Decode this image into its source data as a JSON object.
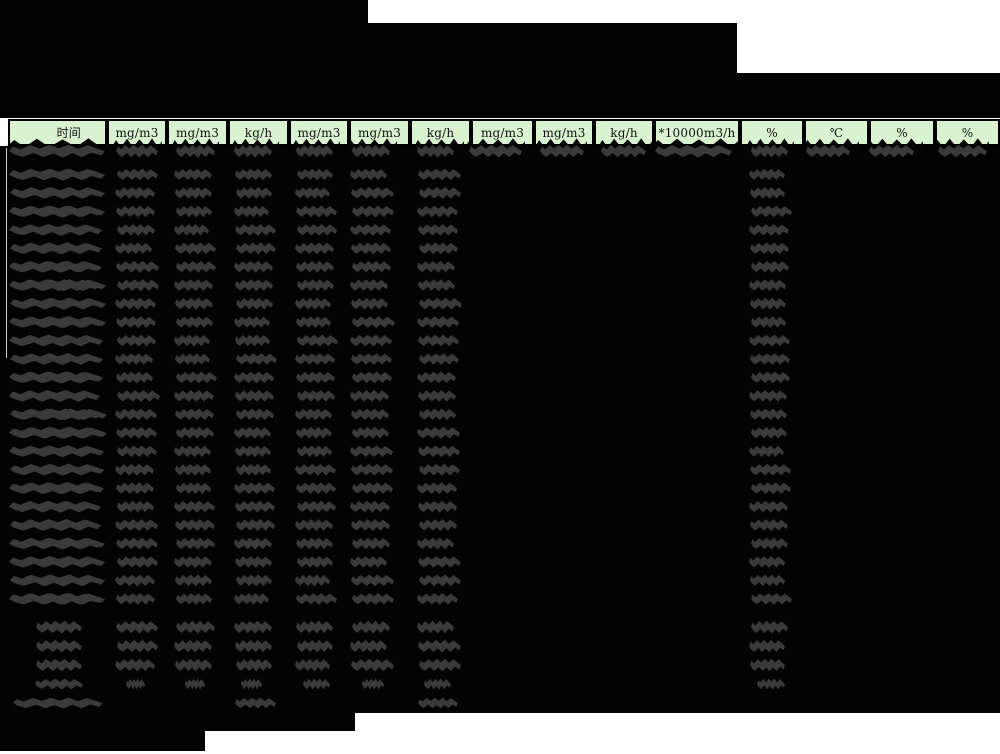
{
  "report": {
    "kind": "redacted-monitoring-report-table",
    "title_visible_text": "",
    "note": "all title lines and cell values are blacked-out redactions; only the unit header row is legible"
  },
  "colors": {
    "page_bg": "#ffffff",
    "header_bg": "#d9f3d1",
    "header_text": "#111111",
    "redaction_black": "#030303",
    "value_blob_gray": "#3a3a3a"
  },
  "table": {
    "columns": [
      {
        "key": "time",
        "label": "时间"
      },
      {
        "key": "col-2",
        "label": "mg/m3"
      },
      {
        "key": "col-3",
        "label": "mg/m3"
      },
      {
        "key": "col-4",
        "label": "kg/h"
      },
      {
        "key": "col-5",
        "label": "mg/m3"
      },
      {
        "key": "col-6",
        "label": "mg/m3"
      },
      {
        "key": "col-7",
        "label": "kg/h"
      },
      {
        "key": "col-8",
        "label": "mg/m3"
      },
      {
        "key": "col-9",
        "label": "mg/m3"
      },
      {
        "key": "col-10",
        "label": "kg/h"
      },
      {
        "key": "col-11",
        "label": "*10000m3/h"
      },
      {
        "key": "col-12",
        "label": "%"
      },
      {
        "key": "col-13",
        "label": "℃"
      },
      {
        "key": "col-14",
        "label": "%"
      },
      {
        "key": "col-15",
        "label": "%"
      }
    ],
    "body": {
      "row_count": 25,
      "first_row_redacted_columns": [
        1,
        2,
        3,
        4,
        5,
        6,
        7,
        8,
        9,
        10,
        11,
        12,
        13,
        14,
        15
      ],
      "other_rows_redacted_columns": [
        1,
        2,
        3,
        4,
        5,
        6,
        7,
        12
      ]
    },
    "summary": {
      "rows": [
        {
          "name": "summary-row-1",
          "label_redacted": true,
          "redacted_columns": [
            2,
            3,
            4,
            5,
            6,
            7,
            12
          ],
          "small": false
        },
        {
          "name": "summary-row-2",
          "label_redacted": true,
          "redacted_columns": [
            2,
            3,
            4,
            5,
            6,
            7,
            12
          ],
          "small": false
        },
        {
          "name": "summary-row-3",
          "label_redacted": true,
          "redacted_columns": [
            2,
            3,
            4,
            5,
            6,
            7,
            12
          ],
          "small": false
        },
        {
          "name": "summary-row-4",
          "label_redacted": true,
          "redacted_columns": [
            2,
            3,
            4,
            5,
            6,
            7,
            12
          ],
          "small": true
        },
        {
          "name": "footer-limit-row",
          "label_redacted": true,
          "redacted_columns": [
            4,
            7
          ],
          "small": true
        }
      ]
    }
  },
  "redactions": {
    "title_lines": [
      "redacted-title-line-1",
      "redacted-title-line-2",
      "redacted-title-line-3"
    ],
    "bottom_steps": [
      "redacted-bottom-step-1",
      "redacted-bottom-step-2"
    ]
  }
}
